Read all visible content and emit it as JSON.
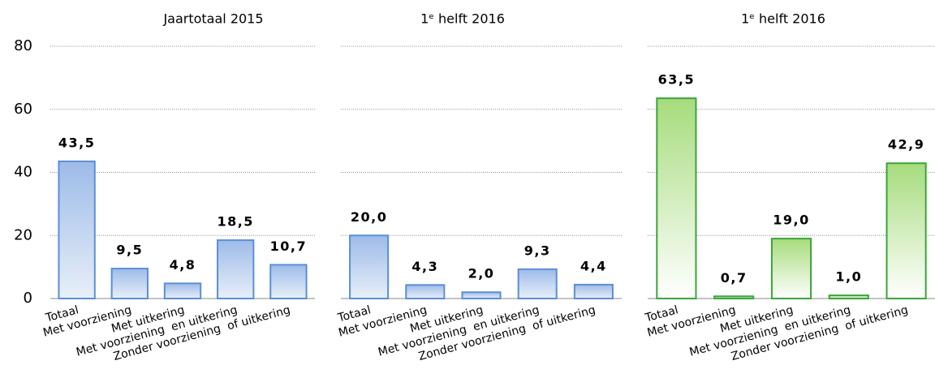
{
  "chart_data": [
    {
      "type": "bar",
      "title": "Jaartotaal 2015",
      "categories": [
        "Totaal",
        "Met voorziening",
        "Met uitkering",
        "Met voorziening  en uitkering",
        "Zonder voorziening  of uitkering"
      ],
      "values": [
        43.5,
        9.5,
        4.8,
        18.5,
        10.7
      ],
      "value_labels": [
        "43,5",
        "9,5",
        "4,8",
        "18,5",
        "10,7"
      ],
      "color": "#5b8fd6",
      "ylim": [
        0,
        80
      ],
      "yticks": [
        0,
        20,
        40,
        60,
        80
      ],
      "grid": true,
      "show_tick_labels": true
    },
    {
      "type": "bar",
      "title": "1ᵉ helft 2016",
      "categories": [
        "Totaal",
        "Met voorziening",
        "Met uitkering",
        "Met voorziening  en uitkering",
        "Zonder voorziening  of uitkering"
      ],
      "values": [
        20.0,
        4.3,
        2.0,
        9.3,
        4.4
      ],
      "value_labels": [
        "20,0",
        "4,3",
        "2,0",
        "9,3",
        "4,4"
      ],
      "color": "#5b8fd6",
      "ylim": [
        0,
        80
      ],
      "yticks": [
        0,
        20,
        40,
        60,
        80
      ],
      "grid": true,
      "show_tick_labels": false
    },
    {
      "type": "bar",
      "title": "1ᵉ helft 2016",
      "categories": [
        "Totaal",
        "Met voorziening",
        "Met uitkering",
        "Met voorziening  en uitkering",
        "Zonder voorziening  of uitkering"
      ],
      "values": [
        63.5,
        0.7,
        19.0,
        1.0,
        42.9
      ],
      "value_labels": [
        "63,5",
        "0,7",
        "19,0",
        "1,0",
        "42,9"
      ],
      "color": "#3aa53a",
      "ylim": [
        0,
        80
      ],
      "yticks": [
        0,
        20,
        40,
        60,
        80
      ],
      "grid": true,
      "show_tick_labels": false
    }
  ]
}
